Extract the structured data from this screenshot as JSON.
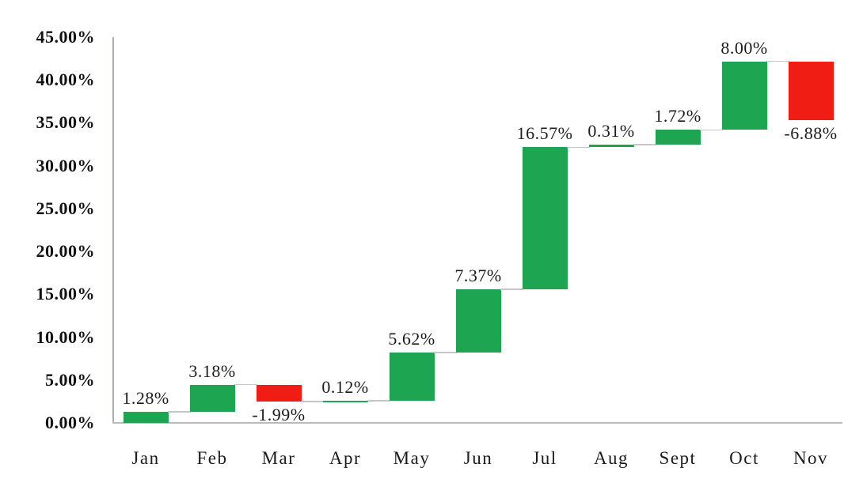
{
  "chart_data": {
    "type": "bar",
    "subtype": "waterfall",
    "title": "",
    "xlabel": "",
    "ylabel": "",
    "categories": [
      "Jan",
      "Feb",
      "Mar",
      "Apr",
      "May",
      "Jun",
      "Jul",
      "Aug",
      "Sept",
      "Oct",
      "Nov"
    ],
    "values": [
      1.28,
      3.18,
      -1.99,
      0.12,
      5.62,
      7.37,
      16.57,
      0.31,
      1.72,
      8.0,
      -6.88
    ],
    "data_labels": [
      "1.28%",
      "3.18%",
      "-1.99%",
      "0.12%",
      "5.62%",
      "7.37%",
      "16.57%",
      "0.31%",
      "1.72%",
      "8.00%",
      "-6.88%"
    ],
    "cumulative_levels": [
      1.28,
      4.46,
      2.47,
      2.59,
      8.21,
      15.58,
      32.15,
      32.46,
      34.18,
      42.18,
      35.3
    ],
    "ylim": [
      0,
      45
    ],
    "ytick_step": 5,
    "ytick_labels": [
      "0.00%",
      "5.00%",
      "10.00%",
      "15.00%",
      "20.00%",
      "25.00%",
      "30.00%",
      "35.00%",
      "40.00%",
      "45.00%"
    ],
    "grid": false,
    "legend": "none",
    "colors": {
      "positive": "#1ea551",
      "negative": "#f01d15",
      "connector": "#c6c6c6",
      "axis": "#a9aeb4",
      "text": "#1c1c1c"
    }
  }
}
